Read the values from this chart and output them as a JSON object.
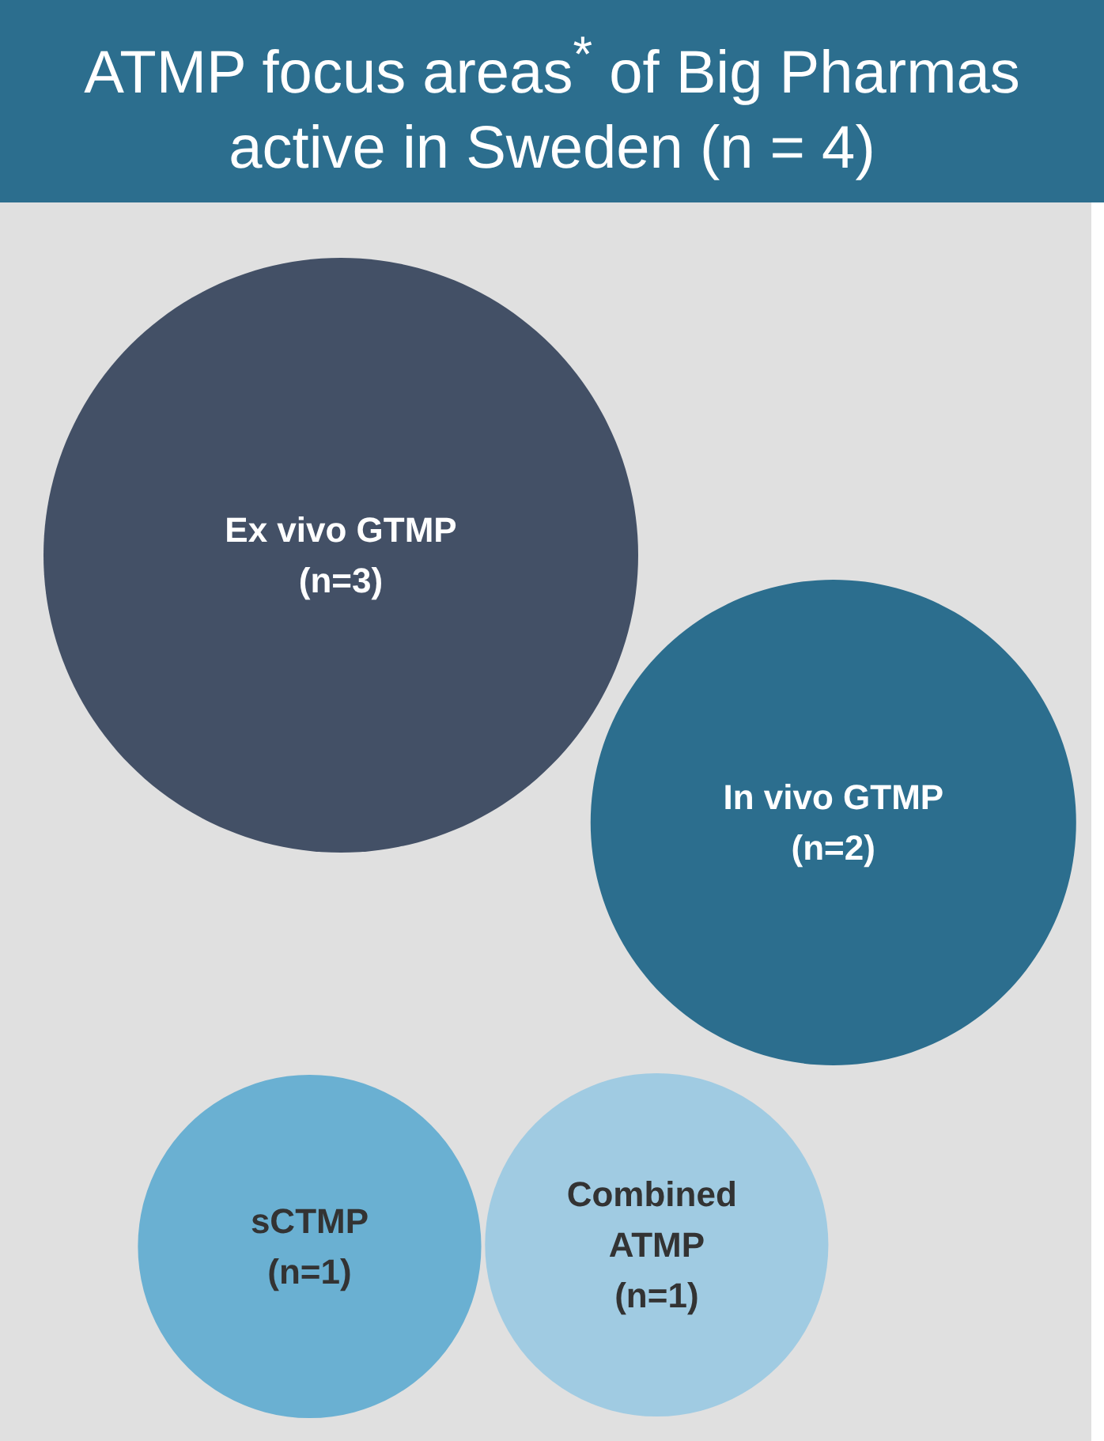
{
  "chart_data": {
    "type": "other",
    "title": "ATMP focus areas$^{*}$ of Big Pharmas active in Sweden (n = 4)",
    "categories": [
      "Ex vivo GTMP",
      "In vivo GTMP",
      "sCTMP",
      "Combined ATMP"
    ],
    "values": [
      3,
      2,
      1,
      1
    ],
    "value_labels": [
      "(n=3)",
      "(n=2)",
      "(n=1)",
      "(n=1)"
    ],
    "colors": [
      "#435066",
      "#2c6e8e",
      "#6ab0d2",
      "#a0cbe2"
    ]
  }
}
